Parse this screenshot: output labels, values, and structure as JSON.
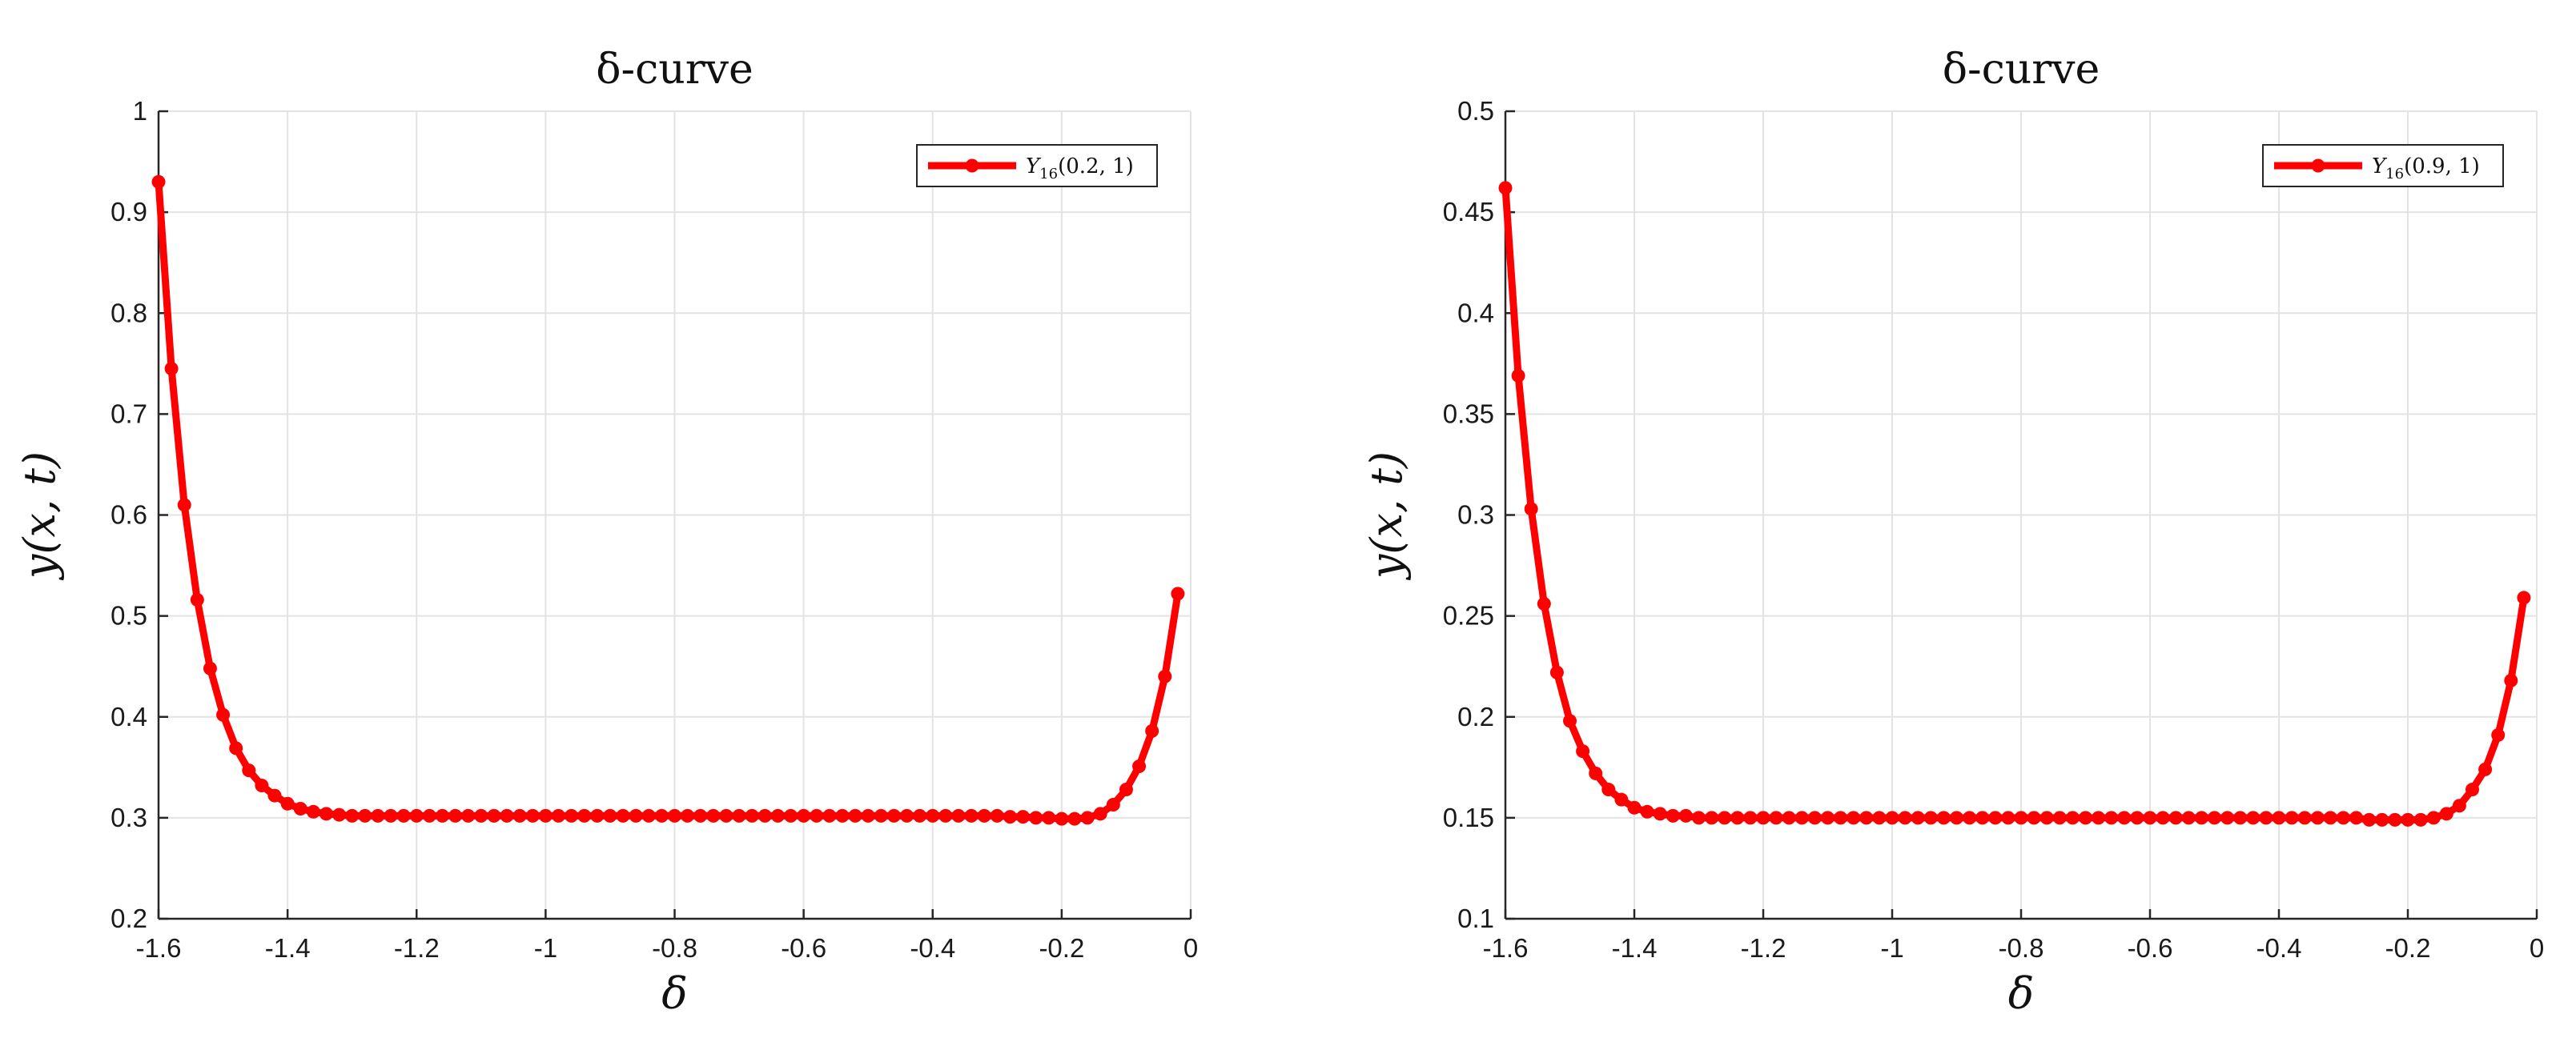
{
  "chart_data": [
    {
      "type": "line",
      "title": "δ-curve",
      "xlabel": "δ",
      "ylabel": "y(x, t)",
      "xlim": [
        -1.6,
        0
      ],
      "ylim": [
        0.2,
        1
      ],
      "xticks": [
        -1.6,
        -1.4,
        -1.2,
        -1,
        -0.8,
        -0.6,
        -0.4,
        -0.2,
        0
      ],
      "xtick_labels": [
        "-1.6",
        "-1.4",
        "-1.2",
        "-1",
        "-0.8",
        "-0.6",
        "-0.4",
        "-0.2",
        "0"
      ],
      "yticks": [
        0.2,
        0.3,
        0.4,
        0.5,
        0.6,
        0.7,
        0.8,
        0.9,
        1
      ],
      "ytick_labels": [
        "0.2",
        "0.3",
        "0.4",
        "0.5",
        "0.6",
        "0.7",
        "0.8",
        "0.9",
        "1"
      ],
      "grid": true,
      "legend_position": "top-right",
      "series": [
        {
          "name": "Y16(0.2, 1)",
          "legend_main": "Y",
          "legend_sub": "16",
          "legend_args": "(0.2, 1)",
          "color": "#ff0000",
          "marker": "circle",
          "x": [
            -1.6,
            -1.58,
            -1.56,
            -1.54,
            -1.52,
            -1.5,
            -1.48,
            -1.46,
            -1.44,
            -1.42,
            -1.4,
            -1.38,
            -1.36,
            -1.34,
            -1.32,
            -1.3,
            -1.28,
            -1.26,
            -1.24,
            -1.22,
            -1.2,
            -1.18,
            -1.16,
            -1.14,
            -1.12,
            -1.1,
            -1.08,
            -1.06,
            -1.04,
            -1.02,
            -1.0,
            -0.98,
            -0.96,
            -0.94,
            -0.92,
            -0.9,
            -0.88,
            -0.86,
            -0.84,
            -0.82,
            -0.8,
            -0.78,
            -0.76,
            -0.74,
            -0.72,
            -0.7,
            -0.68,
            -0.66,
            -0.64,
            -0.62,
            -0.6,
            -0.58,
            -0.56,
            -0.54,
            -0.52,
            -0.5,
            -0.48,
            -0.46,
            -0.44,
            -0.42,
            -0.4,
            -0.38,
            -0.36,
            -0.34,
            -0.32,
            -0.3,
            -0.28,
            -0.26,
            -0.24,
            -0.22,
            -0.2,
            -0.18,
            -0.16,
            -0.14,
            -0.12,
            -0.1,
            -0.08,
            -0.06,
            -0.04,
            -0.02
          ],
          "y": [
            0.93,
            0.745,
            0.61,
            0.516,
            0.448,
            0.402,
            0.369,
            0.347,
            0.332,
            0.322,
            0.314,
            0.309,
            0.306,
            0.304,
            0.303,
            0.302,
            0.302,
            0.302,
            0.302,
            0.302,
            0.302,
            0.302,
            0.302,
            0.302,
            0.302,
            0.302,
            0.302,
            0.302,
            0.302,
            0.302,
            0.302,
            0.302,
            0.302,
            0.302,
            0.302,
            0.302,
            0.302,
            0.302,
            0.302,
            0.302,
            0.302,
            0.302,
            0.302,
            0.302,
            0.302,
            0.302,
            0.302,
            0.302,
            0.302,
            0.302,
            0.302,
            0.302,
            0.302,
            0.302,
            0.302,
            0.302,
            0.302,
            0.302,
            0.302,
            0.302,
            0.302,
            0.302,
            0.302,
            0.302,
            0.302,
            0.302,
            0.301,
            0.301,
            0.3,
            0.3,
            0.299,
            0.299,
            0.3,
            0.304,
            0.313,
            0.328,
            0.351,
            0.386,
            0.44,
            0.522
          ]
        }
      ]
    },
    {
      "type": "line",
      "title": "δ-curve",
      "xlabel": "δ",
      "ylabel": "y(x, t)",
      "xlim": [
        -1.6,
        0
      ],
      "ylim": [
        0.1,
        0.5
      ],
      "xticks": [
        -1.6,
        -1.4,
        -1.2,
        -1,
        -0.8,
        -0.6,
        -0.4,
        -0.2,
        0
      ],
      "xtick_labels": [
        "-1.6",
        "-1.4",
        "-1.2",
        "-1",
        "-0.8",
        "-0.6",
        "-0.4",
        "-0.2",
        "0"
      ],
      "yticks": [
        0.1,
        0.15,
        0.2,
        0.25,
        0.3,
        0.35,
        0.4,
        0.45,
        0.5
      ],
      "ytick_labels": [
        "0.1",
        "0.15",
        "0.2",
        "0.25",
        "0.3",
        "0.35",
        "0.4",
        "0.45",
        "0.5"
      ],
      "grid": true,
      "legend_position": "top-right",
      "series": [
        {
          "name": "Y16(0.9, 1)",
          "legend_main": "Y",
          "legend_sub": "16",
          "legend_args": "(0.9, 1)",
          "color": "#ff0000",
          "marker": "circle",
          "x": [
            -1.6,
            -1.58,
            -1.56,
            -1.54,
            -1.52,
            -1.5,
            -1.48,
            -1.46,
            -1.44,
            -1.42,
            -1.4,
            -1.38,
            -1.36,
            -1.34,
            -1.32,
            -1.3,
            -1.28,
            -1.26,
            -1.24,
            -1.22,
            -1.2,
            -1.18,
            -1.16,
            -1.14,
            -1.12,
            -1.1,
            -1.08,
            -1.06,
            -1.04,
            -1.02,
            -1.0,
            -0.98,
            -0.96,
            -0.94,
            -0.92,
            -0.9,
            -0.88,
            -0.86,
            -0.84,
            -0.82,
            -0.8,
            -0.78,
            -0.76,
            -0.74,
            -0.72,
            -0.7,
            -0.68,
            -0.66,
            -0.64,
            -0.62,
            -0.6,
            -0.58,
            -0.56,
            -0.54,
            -0.52,
            -0.5,
            -0.48,
            -0.46,
            -0.44,
            -0.42,
            -0.4,
            -0.38,
            -0.36,
            -0.34,
            -0.32,
            -0.3,
            -0.28,
            -0.26,
            -0.24,
            -0.22,
            -0.2,
            -0.18,
            -0.16,
            -0.14,
            -0.12,
            -0.1,
            -0.08,
            -0.06,
            -0.04,
            -0.02
          ],
          "y": [
            0.462,
            0.369,
            0.303,
            0.256,
            0.222,
            0.198,
            0.183,
            0.172,
            0.164,
            0.159,
            0.155,
            0.153,
            0.152,
            0.151,
            0.151,
            0.15,
            0.15,
            0.15,
            0.15,
            0.15,
            0.15,
            0.15,
            0.15,
            0.15,
            0.15,
            0.15,
            0.15,
            0.15,
            0.15,
            0.15,
            0.15,
            0.15,
            0.15,
            0.15,
            0.15,
            0.15,
            0.15,
            0.15,
            0.15,
            0.15,
            0.15,
            0.15,
            0.15,
            0.15,
            0.15,
            0.15,
            0.15,
            0.15,
            0.15,
            0.15,
            0.15,
            0.15,
            0.15,
            0.15,
            0.15,
            0.15,
            0.15,
            0.15,
            0.15,
            0.15,
            0.15,
            0.15,
            0.15,
            0.15,
            0.15,
            0.15,
            0.15,
            0.149,
            0.149,
            0.149,
            0.149,
            0.149,
            0.15,
            0.152,
            0.156,
            0.164,
            0.174,
            0.191,
            0.218,
            0.259
          ]
        }
      ]
    }
  ]
}
